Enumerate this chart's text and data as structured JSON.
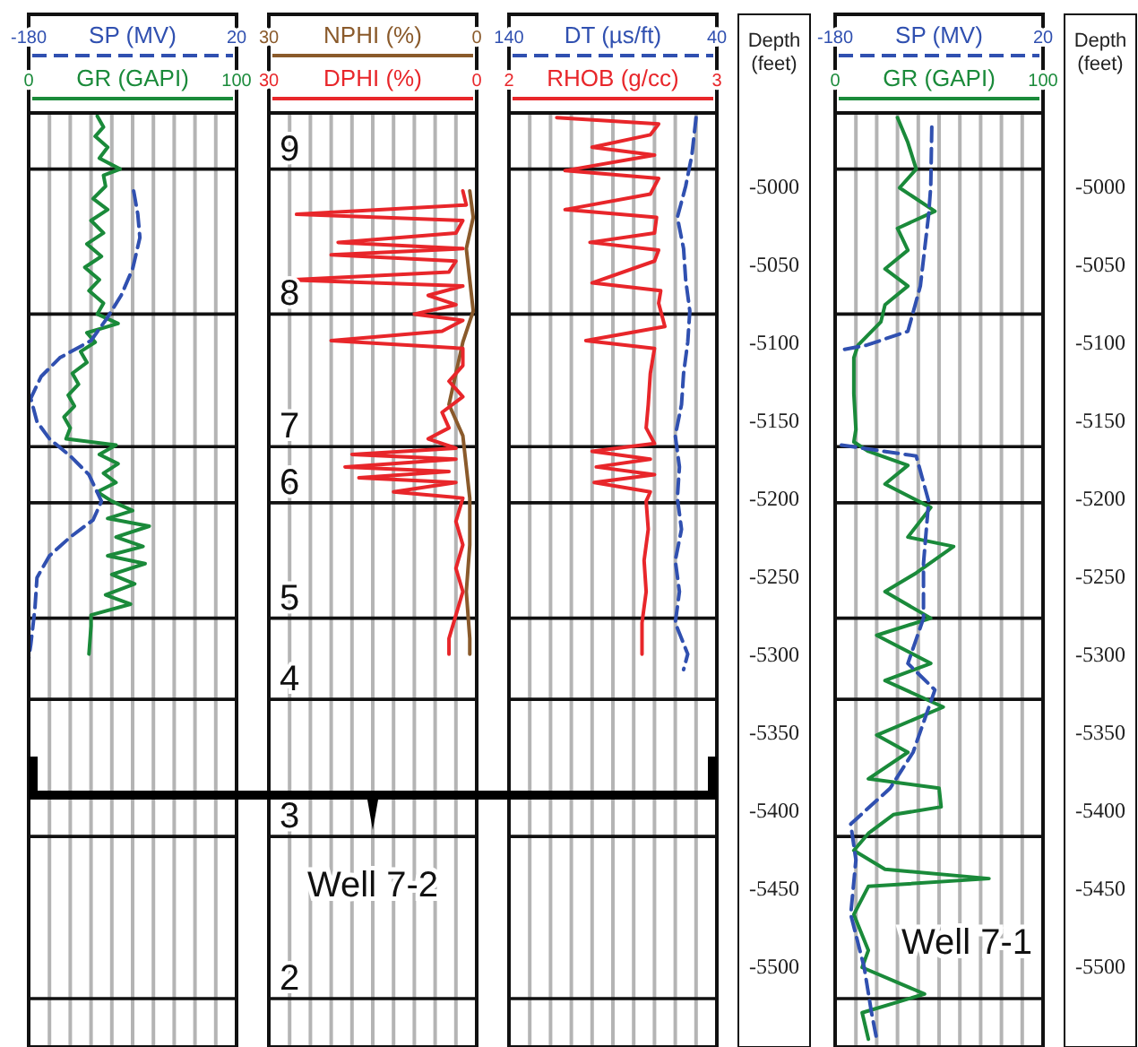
{
  "chart_data": [
    {
      "type": "line",
      "orientation": "horizontal",
      "xlabel": "GR (GAPI)",
      "x2label": "SP (MV)",
      "xlim": [
        0,
        100
      ],
      "x2lim": [
        -180,
        20
      ],
      "xticks": [
        0,
        {
          "value": 10,
          "label": null
        },
        {
          "value": 20,
          "label": null
        },
        {
          "value": 30,
          "label": null
        },
        {
          "value": 40,
          "label": null
        },
        {
          "value": 50,
          "label": null
        },
        {
          "value": 60,
          "label": null
        },
        {
          "value": 70,
          "label": null
        },
        {
          "value": 80,
          "label": null
        },
        {
          "value": 90,
          "label": null
        },
        100
      ],
      "x2ticks": [
        -180,
        20
      ],
      "ylim": [
        -5552,
        -4953
      ],
      "tick_labels": "x",
      "grid": "x",
      "ref_lines": [
        {
          "axis": "y",
          "value": -4989
        },
        {
          "axis": "y",
          "value": -5082
        },
        {
          "axis": "y",
          "value": -5167
        },
        {
          "axis": "y",
          "value": -5203
        },
        {
          "axis": "y",
          "value": -5277
        },
        {
          "axis": "y",
          "value": -5329
        },
        {
          "axis": "y",
          "value": -5417
        },
        {
          "axis": "y",
          "value": -5521
        }
      ],
      "series": [
        {
          "color": "#1a8a3a",
          "line_style": "solid",
          "values": [
            33,
            36,
            32,
            38,
            34,
            44,
            36,
            37,
            31,
            38,
            30,
            36,
            28,
            35,
            27,
            34,
            29,
            36,
            33,
            43,
            28,
            32,
            25,
            28,
            21,
            24,
            19,
            22,
            17,
            20,
            18,
            42,
            34,
            43,
            36,
            42,
            33,
            40,
            50,
            38,
            58,
            42,
            55,
            38,
            56,
            40,
            51,
            37,
            49,
            30,
            30,
            29
          ],
          "x": [
            -4955,
            -4962,
            -4968,
            -4975,
            -4982,
            -4989,
            -4993,
            -5000,
            -5008,
            -5015,
            -5022,
            -5030,
            -5037,
            -5045,
            -5052,
            -5060,
            -5067,
            -5075,
            -5082,
            -5088,
            -5094,
            -5100,
            -5106,
            -5113,
            -5120,
            -5127,
            -5134,
            -5141,
            -5148,
            -5155,
            -5162,
            -5166,
            -5172,
            -5178,
            -5184,
            -5190,
            -5196,
            -5202,
            -5208,
            -5213,
            -5218,
            -5225,
            -5231,
            -5237,
            -5242,
            -5249,
            -5255,
            -5262,
            -5268,
            -5275,
            -5282,
            -5300
          ]
        },
        {
          "axis": "x2",
          "color": "#3050b0",
          "line_style": "dashed",
          "values": [
            -79,
            -75,
            -73,
            -80,
            -91,
            -105,
            -120,
            -150,
            -168,
            -178,
            -172,
            -160,
            -140,
            -122,
            -110,
            -118,
            -140,
            -160,
            -172,
            -174,
            -178,
            -180
          ],
          "x": [
            -5003,
            -5018,
            -5033,
            -5053,
            -5070,
            -5085,
            -5099,
            -5110,
            -5122,
            -5136,
            -5151,
            -5162,
            -5173,
            -5185,
            -5202,
            -5214,
            -5225,
            -5237,
            -5251,
            -5271,
            -5294,
            -5303
          ]
        }
      ]
    },
    {
      "type": "line",
      "orientation": "horizontal",
      "xlabel": "DPHI (%)",
      "x2label": "NPHI (%)",
      "xlim": [
        30,
        0
      ],
      "x2lim": [
        30,
        0
      ],
      "xticks": [
        30,
        {
          "value": 27,
          "label": null
        },
        {
          "value": 24,
          "label": null
        },
        {
          "value": 21,
          "label": null
        },
        {
          "value": 18,
          "label": null
        },
        {
          "value": 15,
          "label": null
        },
        {
          "value": 12,
          "label": null
        },
        {
          "value": 9,
          "label": null
        },
        {
          "value": 6,
          "label": null
        },
        {
          "value": 3,
          "label": null
        },
        0
      ],
      "x2ticks": [
        30,
        0
      ],
      "ylim": [
        -5552,
        -4953
      ],
      "tick_labels": "x",
      "grid": "x",
      "ref_lines": [
        {
          "axis": "y",
          "value": -4989
        },
        {
          "axis": "y",
          "value": -5082
        },
        {
          "axis": "y",
          "value": -5167
        },
        {
          "axis": "y",
          "value": -5203
        },
        {
          "axis": "y",
          "value": -5277
        },
        {
          "axis": "y",
          "value": -5329
        },
        {
          "axis": "y",
          "value": -5417
        },
        {
          "axis": "y",
          "value": -5521
        }
      ],
      "annotations": [
        {
          "text": "9",
          "y": -4989
        },
        {
          "text": "8",
          "y": -5082
        },
        {
          "text": "7",
          "y": -5167
        },
        {
          "text": "6",
          "y": -5203
        },
        {
          "text": "5",
          "y": -5277
        },
        {
          "text": "4",
          "y": -5329
        },
        {
          "text": "3",
          "y": -5417
        },
        {
          "text": "2",
          "y": -5521
        },
        "Well 7-2"
      ],
      "series": [
        {
          "axis": "x2",
          "color": "#8a5a2b",
          "line_style": "solid",
          "values": [
            1,
            0.5,
            1.5,
            1,
            0.5,
            2,
            3,
            4,
            2,
            1.5,
            1,
            1,
            1.5,
            1,
            1
          ],
          "x": [
            -5003,
            -5020,
            -5040,
            -5060,
            -5080,
            -5100,
            -5120,
            -5140,
            -5160,
            -5180,
            -5200,
            -5230,
            -5260,
            -5290,
            -5300
          ]
        },
        {
          "color": "#e8262a",
          "line_style": "solid",
          "values": [
            2,
            1.5,
            26,
            2,
            3,
            20,
            2,
            21,
            3,
            4,
            27,
            2,
            7,
            3,
            9,
            2,
            5,
            21,
            2,
            2,
            4,
            2,
            5,
            4,
            7,
            3,
            18,
            3,
            19,
            4,
            17,
            3,
            12,
            2,
            3,
            2,
            3,
            2,
            3,
            4,
            4
          ],
          "x": [
            -5003,
            -5012,
            -5018,
            -5022,
            -5030,
            -5036,
            -5040,
            -5044,
            -5048,
            -5055,
            -5060,
            -5064,
            -5070,
            -5076,
            -5082,
            -5086,
            -5093,
            -5099,
            -5104,
            -5115,
            -5125,
            -5135,
            -5145,
            -5155,
            -5162,
            -5168,
            -5172,
            -5175,
            -5180,
            -5183,
            -5187,
            -5190,
            -5196,
            -5200,
            -5215,
            -5230,
            -5245,
            -5260,
            -5275,
            -5290,
            -5300
          ]
        }
      ]
    },
    {
      "type": "line",
      "orientation": "horizontal",
      "xlabel": "RHOB (g/cc)",
      "x2label": "DT (µs/ft)",
      "ylabel": "Depth (feet)",
      "xlim": [
        2,
        3
      ],
      "x2lim": [
        140,
        40
      ],
      "xticks": [
        2,
        {
          "value": 2.1,
          "label": null
        },
        {
          "value": 2.2,
          "label": null
        },
        {
          "value": 2.3,
          "label": null
        },
        {
          "value": 2.4,
          "label": null
        },
        {
          "value": 2.5,
          "label": null
        },
        {
          "value": 2.6,
          "label": null
        },
        {
          "value": 2.7,
          "label": null
        },
        {
          "value": 2.8,
          "label": null
        },
        {
          "value": 2.9,
          "label": null
        },
        3
      ],
      "x2ticks": [
        140,
        40
      ],
      "ylim": [
        -5552,
        -4953
      ],
      "yticks": [
        -5000,
        -5050,
        -5100,
        -5150,
        -5200,
        -5250,
        -5300,
        -5350,
        -5400,
        -5450,
        -5500
      ],
      "grid": "x",
      "ref_lines": [
        {
          "axis": "y",
          "value": -4989
        },
        {
          "axis": "y",
          "value": -5082
        },
        {
          "axis": "y",
          "value": -5167
        },
        {
          "axis": "y",
          "value": -5203
        },
        {
          "axis": "y",
          "value": -5277
        },
        {
          "axis": "y",
          "value": -5329
        },
        {
          "axis": "y",
          "value": -5417
        },
        {
          "axis": "y",
          "value": -5521
        }
      ],
      "series": [
        {
          "color": "#e8262a",
          "line_style": "solid",
          "values": [
            2.23,
            2.72,
            2.68,
            2.4,
            2.7,
            2.27,
            2.72,
            2.68,
            2.27,
            2.71,
            2.7,
            2.39,
            2.72,
            2.7,
            2.4,
            2.73,
            2.72,
            2.75,
            2.37,
            2.7,
            2.68,
            2.67,
            2.66,
            2.7,
            2.4,
            2.68,
            2.42,
            2.7,
            2.41,
            2.68,
            2.66,
            2.67,
            2.65,
            2.66,
            2.64,
            2.64
          ],
          "x": [
            -4956,
            -4960,
            -4967,
            -4975,
            -4980,
            -4990,
            -4995,
            -5005,
            -5015,
            -5020,
            -5030,
            -5036,
            -5041,
            -5048,
            -5062,
            -5067,
            -5075,
            -5090,
            -5099,
            -5104,
            -5120,
            -5140,
            -5155,
            -5165,
            -5170,
            -5175,
            -5180,
            -5185,
            -5190,
            -5196,
            -5202,
            -5220,
            -5240,
            -5260,
            -5280,
            -5300
          ]
        },
        {
          "axis": "x2",
          "color": "#3050b0",
          "line_style": "dashed",
          "values": [
            50,
            52,
            55,
            59,
            56,
            55,
            53,
            54,
            56,
            57,
            60,
            58,
            59,
            57,
            60,
            58,
            60,
            54,
            56
          ],
          "x": [
            -4956,
            -4980,
            -5000,
            -5020,
            -5040,
            -5060,
            -5080,
            -5100,
            -5120,
            -5140,
            -5160,
            -5180,
            -5200,
            -5220,
            -5240,
            -5260,
            -5280,
            -5300,
            -5310
          ]
        }
      ]
    },
    {
      "type": "line",
      "orientation": "horizontal",
      "xlabel": "GR (GAPI)",
      "x2label": "SP (MV)",
      "ylabel": "Depth (feet)",
      "xlim": [
        0,
        100
      ],
      "x2lim": [
        -180,
        20
      ],
      "xticks": [
        0,
        {
          "value": 10,
          "label": null
        },
        {
          "value": 20,
          "label": null
        },
        {
          "value": 30,
          "label": null
        },
        {
          "value": 40,
          "label": null
        },
        {
          "value": 50,
          "label": null
        },
        {
          "value": 60,
          "label": null
        },
        {
          "value": 70,
          "label": null
        },
        {
          "value": 80,
          "label": null
        },
        {
          "value": 90,
          "label": null
        },
        100
      ],
      "x2ticks": [
        -180,
        20
      ],
      "ylim": [
        -5552,
        -4953
      ],
      "yticks": [
        -5000,
        -5050,
        -5100,
        -5150,
        -5200,
        -5250,
        -5300,
        -5350,
        -5400,
        -5450,
        -5500
      ],
      "grid": "x",
      "ref_lines": [
        {
          "axis": "y",
          "value": -4989
        },
        {
          "axis": "y",
          "value": -5082
        },
        {
          "axis": "y",
          "value": -5167
        },
        {
          "axis": "y",
          "value": -5203
        },
        {
          "axis": "y",
          "value": -5277
        },
        {
          "axis": "y",
          "value": -5329
        },
        {
          "axis": "y",
          "value": -5417
        },
        {
          "axis": "y",
          "value": -5521
        }
      ],
      "annotations": [
        "Well 7-1"
      ],
      "series": [
        {
          "color": "#1a8a3a",
          "line_style": "solid",
          "values": [
            30,
            35,
            39,
            31,
            48,
            30,
            35,
            24,
            35,
            24,
            22,
            11,
            9,
            9,
            10,
            9,
            16,
            35,
            24,
            46,
            35,
            57,
            39,
            24,
            46,
            20,
            46,
            24,
            52,
            20,
            35,
            16,
            50,
            51,
            28,
            16,
            9,
            24,
            74,
            16,
            9,
            16,
            13,
            43,
            13,
            16
          ],
          "x": [
            -4956,
            -4972,
            -4989,
            -5001,
            -5016,
            -5027,
            -5041,
            -5053,
            -5064,
            -5076,
            -5087,
            -5102,
            -5110,
            -5133,
            -5156,
            -5164,
            -5170,
            -5179,
            -5191,
            -5206,
            -5225,
            -5231,
            -5248,
            -5260,
            -5277,
            -5288,
            -5306,
            -5317,
            -5334,
            -5352,
            -5363,
            -5380,
            -5386,
            -5398,
            -5403,
            -5415,
            -5426,
            -5438,
            -5444,
            -5449,
            -5467,
            -5490,
            -5501,
            -5518,
            -5530,
            -5547
          ]
        },
        {
          "axis": "x2",
          "color": "#3050b0",
          "line_style": "dashed",
          "values": [
            -87,
            -88,
            -90,
            -98,
            -110,
            -150,
            -174,
            null,
            -174,
            -102,
            -90,
            -95,
            -95,
            -110,
            -84,
            -105,
            -127,
            -165,
            -160,
            -165,
            -152,
            -145,
            -140
          ],
          "x": [
            -4962,
            -5000,
            -5018,
            -5064,
            -5093,
            -5102,
            -5105,
            null,
            -5166,
            -5173,
            -5202,
            -5242,
            -5277,
            -5306,
            -5323,
            -5363,
            -5386,
            -5409,
            -5432,
            -5467,
            -5501,
            -5530,
            -5547
          ]
        }
      ]
    }
  ]
}
